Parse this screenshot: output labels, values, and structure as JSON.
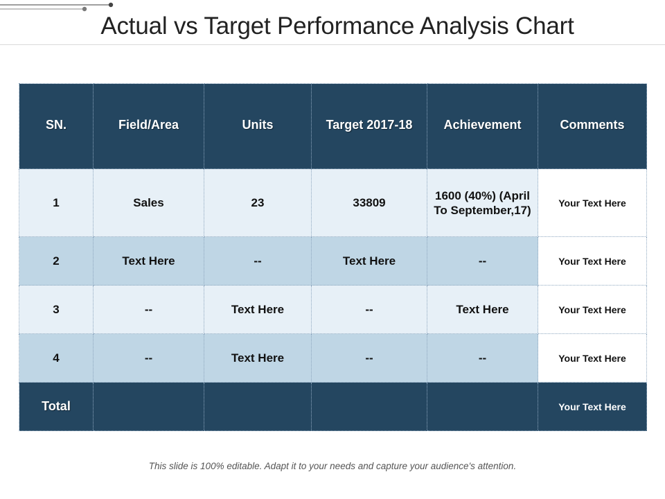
{
  "title": "Actual vs Target Performance Analysis Chart",
  "colors": {
    "header_bg": "#244660",
    "row_light": "#e7f0f7",
    "row_mid": "#bfd6e5",
    "comment_bg": "#ffffff"
  },
  "table": {
    "headers": [
      "SN.",
      "Field/Area",
      "Units",
      "Target 2017-18",
      "Achievement",
      "Comments"
    ],
    "rows": [
      [
        "1",
        "Sales",
        "23",
        "33809",
        "1600 (40%) (April To September,17)",
        "Your Text Here"
      ],
      [
        "2",
        "Text Here",
        "--",
        "Text Here",
        "--",
        "Your Text Here"
      ],
      [
        "3",
        "--",
        "Text Here",
        "--",
        "Text Here",
        "Your Text Here"
      ],
      [
        "4",
        "--",
        "Text Here",
        "--",
        "--",
        "Your Text Here"
      ]
    ],
    "total": [
      "Total",
      "",
      "",
      "",
      "",
      "Your Text Here"
    ]
  },
  "footer": "This slide is 100% editable. Adapt it to your needs and capture your audience's attention."
}
